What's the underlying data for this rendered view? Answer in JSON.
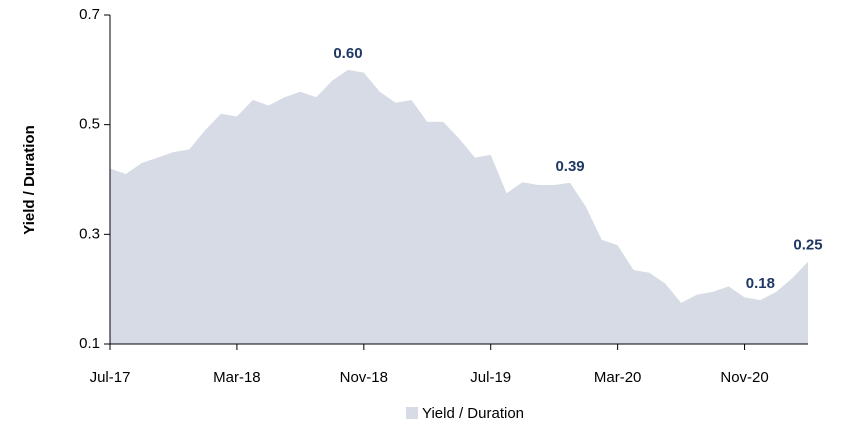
{
  "chart_data": {
    "type": "area",
    "y_label": "Yield / Duration",
    "categories": [
      "Jul-17",
      null,
      null,
      null,
      null,
      null,
      null,
      null,
      "Mar-18",
      null,
      null,
      null,
      null,
      null,
      null,
      null,
      "Nov-18",
      null,
      null,
      null,
      null,
      null,
      null,
      null,
      "Jul-19",
      null,
      null,
      null,
      null,
      null,
      null,
      null,
      "Mar-20",
      null,
      null,
      null,
      null,
      null,
      null,
      null,
      "Nov-20",
      null,
      null,
      null,
      null
    ],
    "series": [
      {
        "name": "Yield / Duration",
        "color": "#d6dbe5",
        "values": [
          0.42,
          0.41,
          0.43,
          0.44,
          0.45,
          0.455,
          0.49,
          0.52,
          0.515,
          0.545,
          0.535,
          0.55,
          0.56,
          0.55,
          0.58,
          0.6,
          0.595,
          0.56,
          0.54,
          0.545,
          0.505,
          0.505,
          0.475,
          0.44,
          0.445,
          0.375,
          0.395,
          0.39,
          0.39,
          0.394,
          0.35,
          0.29,
          0.28,
          0.235,
          0.23,
          0.21,
          0.175,
          0.19,
          0.195,
          0.205,
          0.185,
          0.18,
          0.195,
          0.22,
          0.25
        ],
        "value_labels": [
          null,
          null,
          null,
          null,
          null,
          null,
          null,
          null,
          null,
          null,
          null,
          null,
          null,
          null,
          null,
          "0.60",
          null,
          null,
          null,
          null,
          null,
          null,
          null,
          null,
          null,
          null,
          null,
          null,
          null,
          "0.39",
          null,
          null,
          null,
          null,
          null,
          null,
          null,
          null,
          null,
          null,
          null,
          "0.18",
          null,
          null,
          "0.25"
        ]
      }
    ],
    "ylim": [
      0.1,
      0.7
    ],
    "yticks": [
      0.1,
      0.3,
      0.5,
      0.7
    ],
    "grid": false,
    "legend": "bottom",
    "label_color": "#1f3864"
  }
}
